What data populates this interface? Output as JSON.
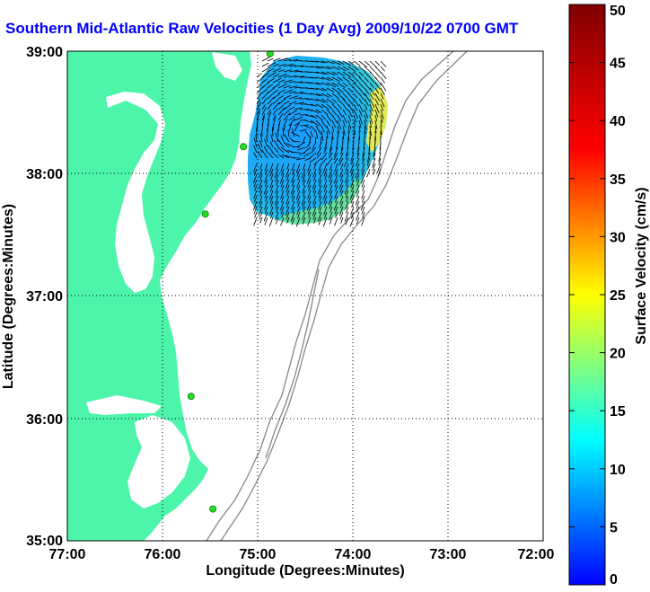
{
  "title": "Southern Mid-Atlantic Raw Velocities (1 Day Avg) 2009/10/22 0700 GMT",
  "xlabel": "Longitude (Degrees:Minutes)",
  "ylabel": "Latitude (Degrees:Minutes)",
  "xticks": [
    "77:00",
    "76:00",
    "75:00",
    "74:00",
    "73:00",
    "72:00"
  ],
  "yticks": [
    "39:00",
    "38:00",
    "37:00",
    "36:00",
    "35:00"
  ],
  "colorbar": {
    "label": "Surface Velocity (cm/s)",
    "ticks": [
      "0",
      "5",
      "10",
      "15",
      "20",
      "25",
      "30",
      "35",
      "40",
      "45",
      "50"
    ],
    "min": 0,
    "max": 50
  },
  "colors": {
    "land": "#4cf5aa",
    "title": "#0000ff",
    "bathymetry": "#888888",
    "station": "#22dd22"
  },
  "map": {
    "lon_range": [
      -77,
      -72
    ],
    "lat_range": [
      35,
      39
    ],
    "grid": "dotted",
    "stations": [
      {
        "lon": -74.87,
        "lat": 38.98
      },
      {
        "lon": -75.15,
        "lat": 38.22
      },
      {
        "lon": -75.55,
        "lat": 37.67
      },
      {
        "lon": -75.7,
        "lat": 36.18
      },
      {
        "lon": -75.47,
        "lat": 35.26
      }
    ]
  }
}
